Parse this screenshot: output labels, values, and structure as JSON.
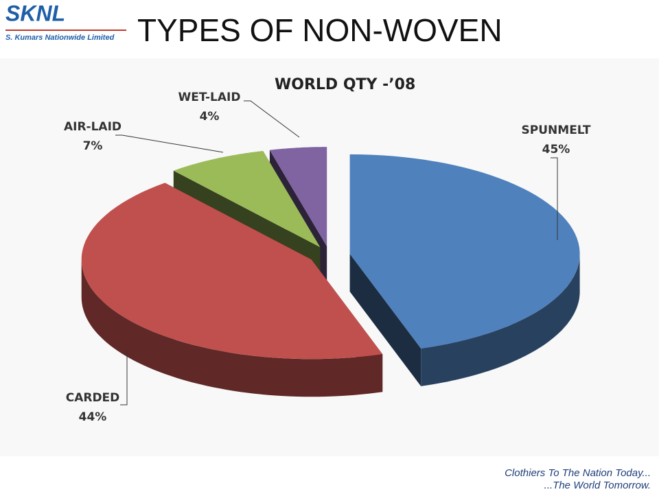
{
  "logo": {
    "name": "SKNL",
    "tagline": "S. Kumars Nationwide Limited"
  },
  "title": "TYPES OF NON-WOVEN",
  "chart_data": {
    "type": "pie",
    "title": "WORLD QTY -’08",
    "categories": [
      "SPUNMELT",
      "CARDED",
      "AIR-LAID",
      "WET-LAID"
    ],
    "values": [
      45,
      44,
      7,
      4
    ],
    "value_labels": [
      "45%",
      "44%",
      "7%",
      "4%"
    ],
    "colors": [
      "#4f81bd",
      "#c0504d",
      "#9bbb59",
      "#8064a2"
    ]
  },
  "footer": {
    "line1": "Clothiers To The Nation Today...",
    "line2": "...The World Tomorrow."
  }
}
